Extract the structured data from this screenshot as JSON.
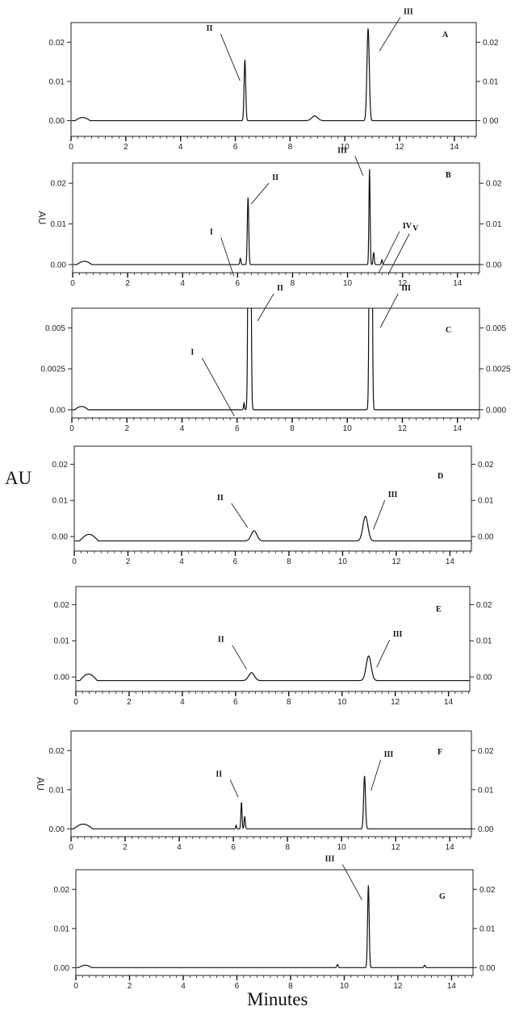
{
  "figure": {
    "y_axis_label": "AU",
    "x_axis_label": "Minutes"
  },
  "chart_data": [
    {
      "type": "line",
      "panel": "A",
      "ylabel": "",
      "xlim": [
        0,
        14.8
      ],
      "ylim": [
        -0.004,
        0.025
      ],
      "x_ticks": [
        "0",
        "2",
        "4",
        "6",
        "8",
        "10",
        "12",
        "14"
      ],
      "y_ticks_left": [
        "0.00",
        "0.01",
        "0.02"
      ],
      "y_ticks_right": [
        "0 00",
        "0.01",
        "0.02"
      ],
      "baseline": 0,
      "start_bump": [
        0.15,
        0.7,
        0.0008
      ],
      "peaks": [
        {
          "label": "II",
          "rt": 6.35,
          "height": 0.0155,
          "width": 0.07
        },
        {
          "label": "",
          "rt": 8.9,
          "height": 0.0012,
          "width": 0.25
        },
        {
          "label": "III",
          "rt": 10.85,
          "height": 0.0235,
          "width": 0.1
        }
      ]
    },
    {
      "type": "line",
      "panel": "B",
      "ylabel": "AU",
      "xlim": [
        0,
        14.8
      ],
      "ylim": [
        -0.002,
        0.025
      ],
      "x_ticks": [
        "0",
        "2",
        "4",
        "6",
        "8",
        "10",
        "12",
        "14"
      ],
      "y_ticks_left": [
        "0.00",
        "0.01",
        "0.02"
      ],
      "y_ticks_right": [
        "0.00",
        "0.01",
        "0.02"
      ],
      "baseline": 0,
      "start_bump": [
        0.15,
        0.7,
        0.0008
      ],
      "peaks": [
        {
          "label": "I",
          "rt": 6.1,
          "height": 0.0015,
          "width": 0.05
        },
        {
          "label": "II",
          "rt": 6.38,
          "height": 0.0165,
          "width": 0.06
        },
        {
          "label": "III",
          "rt": 10.8,
          "height": 0.0235,
          "width": 0.05
        },
        {
          "label": "IV",
          "rt": 10.95,
          "height": 0.003,
          "width": 0.05
        },
        {
          "label": "V",
          "rt": 11.25,
          "height": 0.0012,
          "width": 0.05
        }
      ]
    },
    {
      "type": "line",
      "panel": "C",
      "ylabel": "",
      "xlim": [
        0,
        14.8
      ],
      "ylim": [
        -0.0005,
        0.0062
      ],
      "x_ticks": [
        "0",
        "2",
        "4",
        "6",
        "8",
        "10",
        "12",
        "14"
      ],
      "y_ticks_left": [
        "0.00",
        "0.0025",
        "0.005"
      ],
      "y_ticks_right": [
        "0.000",
        "0.0025",
        "0.005"
      ],
      "baseline": 0,
      "start_bump": [
        0.1,
        0.6,
        0.0002
      ],
      "peaks": [
        {
          "label": "I",
          "rt": 6.25,
          "height": 0.0004,
          "width": 0.04
        },
        {
          "label": "II",
          "rt": 6.45,
          "height": 0.05,
          "width": 0.08
        },
        {
          "label": "III",
          "rt": 10.85,
          "height": 0.05,
          "width": 0.08
        }
      ]
    },
    {
      "type": "line",
      "panel": "D",
      "ylabel": "",
      "xlim": [
        0,
        14.8
      ],
      "ylim": [
        -0.004,
        0.025
      ],
      "x_ticks": [
        "0",
        "2",
        "4",
        "6",
        "8",
        "10",
        "12",
        "14"
      ],
      "y_ticks_left": [
        "0.00",
        "0.01",
        "0.02"
      ],
      "y_ticks_right": [
        "0.00",
        "0.01",
        "0.02"
      ],
      "baseline": -0.0012,
      "start_bump": [
        0.2,
        0.9,
        0.0018
      ],
      "peaks": [
        {
          "label": "II",
          "rt": 6.7,
          "height": 0.0028,
          "width": 0.25
        },
        {
          "label": "III",
          "rt": 10.85,
          "height": 0.0068,
          "width": 0.22
        }
      ]
    },
    {
      "type": "line",
      "panel": "E",
      "ylabel": "",
      "xlim": [
        0,
        14.8
      ],
      "ylim": [
        -0.004,
        0.025
      ],
      "x_ticks": [
        "0",
        "2",
        "4",
        "6",
        "8",
        "10",
        "12",
        "14"
      ],
      "y_ticks_left": [
        "0.00",
        "0.01",
        "0.02"
      ],
      "y_ticks_right": [
        "0.00",
        "0.01",
        "0.02"
      ],
      "baseline": -0.001,
      "start_bump": [
        0.15,
        0.8,
        0.0018
      ],
      "peaks": [
        {
          "label": "II",
          "rt": 6.6,
          "height": 0.0022,
          "width": 0.25
        },
        {
          "label": "III",
          "rt": 11.0,
          "height": 0.0068,
          "width": 0.22
        }
      ]
    },
    {
      "type": "line",
      "panel": "F",
      "ylabel": "AU",
      "xlim": [
        0,
        14.8
      ],
      "ylim": [
        -0.002,
        0.025
      ],
      "x_ticks": [
        "0",
        "2",
        "4",
        "6",
        "8",
        "10",
        "12",
        "14"
      ],
      "y_ticks_left": [
        "0.00",
        "0.01",
        "0.02"
      ],
      "y_ticks_right": [
        "0.00",
        "0.01",
        "0.02"
      ],
      "baseline": 0,
      "start_bump": [
        0.1,
        0.8,
        0.0012
      ],
      "peaks": [
        {
          "label": "",
          "rt": 6.1,
          "height": 0.0009,
          "width": 0.04
        },
        {
          "label": "II",
          "rt": 6.3,
          "height": 0.0068,
          "width": 0.05
        },
        {
          "label": "",
          "rt": 6.42,
          "height": 0.0032,
          "width": 0.05
        },
        {
          "label": "III",
          "rt": 10.85,
          "height": 0.0135,
          "width": 0.08
        }
      ]
    },
    {
      "type": "line",
      "panel": "G",
      "ylabel": "",
      "xlim": [
        0,
        14.8
      ],
      "ylim": [
        -0.002,
        0.025
      ],
      "x_ticks": [
        "0",
        "2",
        "4",
        "6",
        "8",
        "10",
        "12",
        "14"
      ],
      "y_ticks_left": [
        "0.00",
        "0.01",
        "0.02"
      ],
      "y_ticks_right": [
        "0.00",
        "0.01",
        "0.02"
      ],
      "baseline": 0,
      "start_bump": [
        0.1,
        0.6,
        0.0006
      ],
      "peaks": [
        {
          "label": "",
          "rt": 9.75,
          "height": 0.0008,
          "width": 0.06
        },
        {
          "label": "III",
          "rt": 10.9,
          "height": 0.021,
          "width": 0.07
        },
        {
          "label": "",
          "rt": 13.0,
          "height": 0.0006,
          "width": 0.06
        }
      ]
    }
  ]
}
